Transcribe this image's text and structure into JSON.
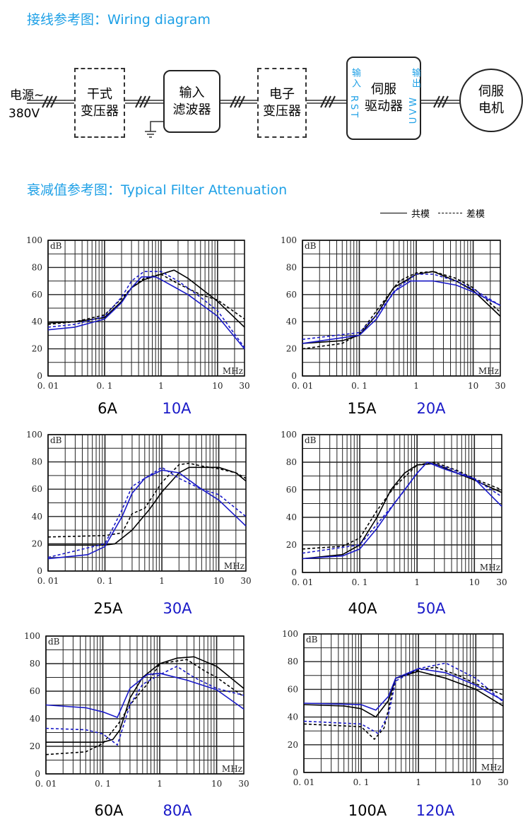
{
  "wiring": {
    "title": "接线参考图：Wiring diagram",
    "power_label": "电源~",
    "voltage_label": "380V",
    "dry_transformer": [
      "干式",
      "变压器"
    ],
    "input_filter": [
      "输入",
      "滤波器"
    ],
    "electronic_transformer": [
      "电子",
      "变压器"
    ],
    "servo_drive": [
      "伺服",
      "驱动器"
    ],
    "drive_input_label": "输入",
    "drive_input_terminals": "RST",
    "drive_output_label": "输出",
    "drive_output_terminals": "UVW",
    "servo_motor": [
      "伺服",
      "电机"
    ]
  },
  "attenuation": {
    "title": "衰减值参考图：Typical Filter Attenuation",
    "legend_common": "共模",
    "legend_diff": "差模"
  },
  "colors": {
    "accent": "#1ea0e6",
    "model_a": "#000000",
    "model_b": "#1a1ac8"
  },
  "chart_data": [
    {
      "type": "line",
      "ylabel": "dB",
      "xlabel": "MHz",
      "xscale": "log",
      "xlim": [
        0.01,
        30
      ],
      "ylim": [
        0,
        100
      ],
      "xticks": [
        "0. 01",
        "0. 1",
        "1",
        "10",
        "30"
      ],
      "yticks": [
        "0",
        "20",
        "40",
        "60",
        "80",
        "100"
      ],
      "labels": [
        "6A",
        "10A"
      ],
      "series": [
        {
          "name": "6A 共模",
          "x": [
            0.01,
            0.03,
            0.1,
            0.2,
            0.3,
            0.5,
            1,
            1.7,
            3,
            10,
            30
          ],
          "y": [
            39,
            40,
            43,
            55,
            65,
            71,
            75,
            78,
            72,
            55,
            36
          ]
        },
        {
          "name": "6A 差模",
          "x": [
            0.01,
            0.03,
            0.1,
            0.2,
            0.3,
            0.5,
            1,
            2,
            5,
            10,
            30
          ],
          "y": [
            38,
            40,
            45,
            57,
            65,
            72,
            75,
            68,
            60,
            56,
            42
          ]
        },
        {
          "name": "10A 共模",
          "x": [
            0.01,
            0.03,
            0.1,
            0.2,
            0.3,
            0.45,
            0.8,
            1,
            3,
            10,
            30
          ],
          "y": [
            34,
            36,
            42,
            54,
            65,
            73,
            73,
            71,
            60,
            44,
            20
          ]
        },
        {
          "name": "10A 差模",
          "x": [
            0.01,
            0.03,
            0.1,
            0.2,
            0.3,
            0.5,
            1,
            2,
            5,
            10,
            30
          ],
          "y": [
            36,
            38,
            44,
            58,
            70,
            77,
            77,
            70,
            58,
            48,
            21
          ]
        }
      ]
    },
    {
      "type": "line",
      "ylabel": "dB",
      "xlabel": "MHz",
      "xscale": "log",
      "xlim": [
        0.01,
        30
      ],
      "ylim": [
        0,
        100
      ],
      "xticks": [
        "0. 01",
        "0. 1",
        "1",
        "10",
        "30"
      ],
      "yticks": [
        "0",
        "20",
        "40",
        "60",
        "80",
        "100"
      ],
      "labels": [
        "15A",
        "20A"
      ],
      "series": [
        {
          "name": "15A 共模",
          "x": [
            0.01,
            0.05,
            0.1,
            0.2,
            0.4,
            1,
            2,
            5,
            10,
            30
          ],
          "y": [
            24,
            26,
            30,
            45,
            65,
            75,
            77,
            70,
            63,
            44
          ]
        },
        {
          "name": "15A 差模",
          "x": [
            0.01,
            0.05,
            0.1,
            0.2,
            0.5,
            1,
            2,
            5,
            10,
            30
          ],
          "y": [
            20,
            24,
            31,
            48,
            70,
            76,
            77,
            72,
            65,
            47
          ]
        },
        {
          "name": "20A 共模",
          "x": [
            0.01,
            0.1,
            0.2,
            0.4,
            0.8,
            2,
            5,
            10,
            30
          ],
          "y": [
            24,
            30,
            42,
            62,
            70,
            70,
            67,
            62,
            52
          ]
        },
        {
          "name": "20A 差模",
          "x": [
            0.01,
            0.1,
            0.2,
            0.5,
            1,
            2,
            5,
            10,
            30
          ],
          "y": [
            27,
            32,
            45,
            66,
            75,
            75,
            70,
            64,
            52
          ]
        }
      ]
    },
    {
      "type": "line",
      "ylabel": "dB",
      "xlabel": "MHz",
      "xscale": "log",
      "xlim": [
        0.01,
        30
      ],
      "ylim": [
        0,
        100
      ],
      "xticks": [
        "0. 01",
        "0. 1",
        "1",
        "10",
        "30"
      ],
      "yticks": [
        "0",
        "20",
        "40",
        "60",
        "80",
        "100"
      ],
      "labels": [
        "25A",
        "30A"
      ],
      "series": [
        {
          "name": "25A 共模",
          "x": [
            0.01,
            0.1,
            0.15,
            0.3,
            0.6,
            1,
            2,
            3,
            10,
            20,
            30
          ],
          "y": [
            19,
            19,
            20,
            30,
            45,
            58,
            72,
            76,
            76,
            72,
            66
          ]
        },
        {
          "name": "25A 差模",
          "x": [
            0.01,
            0.1,
            0.2,
            0.3,
            0.5,
            1,
            2,
            3,
            5,
            10,
            20,
            30
          ],
          "y": [
            25,
            26,
            28,
            42,
            46,
            65,
            78,
            79,
            77,
            75,
            72,
            68
          ]
        },
        {
          "name": "30A 共模",
          "x": [
            0.01,
            0.05,
            0.1,
            0.2,
            0.3,
            0.5,
            1,
            2,
            5,
            10,
            30
          ],
          "y": [
            9,
            12,
            18,
            40,
            57,
            68,
            74,
            72,
            60,
            52,
            33
          ]
        },
        {
          "name": "30A 差模",
          "x": [
            0.01,
            0.1,
            0.2,
            0.3,
            0.6,
            1,
            2,
            5,
            10,
            30
          ],
          "y": [
            10,
            20,
            45,
            62,
            70,
            76,
            68,
            60,
            56,
            40
          ]
        }
      ]
    },
    {
      "type": "line",
      "ylabel": "dB",
      "xlabel": "MHz",
      "xscale": "log",
      "xlim": [
        0.01,
        30
      ],
      "ylim": [
        0,
        100
      ],
      "xticks": [
        "0. 01",
        "0. 1",
        "1",
        "10",
        "30"
      ],
      "yticks": [
        "0",
        "20",
        "40",
        "60",
        "80",
        "100"
      ],
      "labels": [
        "40A",
        "50A"
      ],
      "series": [
        {
          "name": "40A 共模",
          "x": [
            0.01,
            0.05,
            0.1,
            0.2,
            0.35,
            0.6,
            1,
            2,
            5,
            10,
            30
          ],
          "y": [
            10,
            13,
            20,
            40,
            60,
            72,
            78,
            79,
            72,
            67,
            58
          ]
        },
        {
          "name": "40A 差模",
          "x": [
            0.01,
            0.05,
            0.1,
            0.2,
            0.4,
            1,
            2,
            5,
            10,
            30
          ],
          "y": [
            17,
            19,
            25,
            45,
            62,
            78,
            80,
            74,
            68,
            60
          ]
        },
        {
          "name": "50A 共模",
          "x": [
            0.01,
            0.05,
            0.1,
            0.2,
            0.4,
            1,
            1.5,
            3,
            10,
            30
          ],
          "y": [
            10,
            12,
            17,
            32,
            50,
            72,
            80,
            75,
            68,
            48
          ]
        },
        {
          "name": "50A 差模",
          "x": [
            0.01,
            0.1,
            0.2,
            0.5,
            1,
            1.5,
            4,
            10,
            30
          ],
          "y": [
            14,
            20,
            35,
            55,
            72,
            80,
            75,
            68,
            55
          ]
        }
      ]
    },
    {
      "type": "line",
      "ylabel": "dB",
      "xlabel": "MHz",
      "xscale": "log",
      "xlim": [
        0.01,
        30
      ],
      "ylim": [
        0,
        100
      ],
      "xticks": [
        "0. 01",
        "0. 1",
        "1",
        "10",
        "30"
      ],
      "yticks": [
        "0",
        "20",
        "40",
        "60",
        "80",
        "100"
      ],
      "labels": [
        "60A",
        "80A"
      ],
      "series": [
        {
          "name": "60A 共模",
          "x": [
            0.01,
            0.1,
            0.15,
            0.2,
            0.3,
            0.5,
            1,
            2,
            4,
            10,
            30
          ],
          "y": [
            23,
            23,
            25,
            32,
            55,
            70,
            80,
            84,
            85,
            78,
            62
          ]
        },
        {
          "name": "60A 差模",
          "x": [
            0.01,
            0.05,
            0.1,
            0.2,
            0.3,
            0.6,
            1,
            3,
            6,
            10,
            30
          ],
          "y": [
            14,
            16,
            22,
            38,
            50,
            65,
            80,
            83,
            75,
            70,
            56
          ]
        },
        {
          "name": "80A 共模",
          "x": [
            0.01,
            0.05,
            0.1,
            0.18,
            0.3,
            0.6,
            1,
            3,
            10,
            30
          ],
          "y": [
            50,
            48,
            45,
            41,
            62,
            72,
            73,
            68,
            61,
            47
          ]
        },
        {
          "name": "80A 差模",
          "x": [
            0.01,
            0.05,
            0.1,
            0.18,
            0.3,
            0.5,
            1,
            2,
            4,
            10,
            30
          ],
          "y": [
            33,
            32,
            29,
            21,
            50,
            65,
            72,
            78,
            70,
            62,
            57
          ]
        }
      ]
    },
    {
      "type": "line",
      "ylabel": "dB",
      "xlabel": "MHz",
      "xscale": "log",
      "xlim": [
        0.01,
        30
      ],
      "ylim": [
        0,
        100
      ],
      "xticks": [
        "0. 01",
        "0. 1",
        "1",
        "10",
        "30"
      ],
      "yticks": [
        "0",
        "20",
        "40",
        "60",
        "80",
        "100"
      ],
      "labels": [
        "100A",
        "120A"
      ],
      "series": [
        {
          "name": "100A 共模",
          "x": [
            0.01,
            0.05,
            0.1,
            0.18,
            0.3,
            0.4,
            1,
            3,
            10,
            30
          ],
          "y": [
            49,
            48,
            46,
            40,
            52,
            68,
            73,
            68,
            60,
            48
          ]
        },
        {
          "name": "100A 差模",
          "x": [
            0.01,
            0.1,
            0.17,
            0.25,
            0.4,
            1,
            2,
            5,
            10,
            30
          ],
          "y": [
            35,
            33,
            24,
            32,
            68,
            74,
            76,
            70,
            64,
            56
          ]
        },
        {
          "name": "120A 共模",
          "x": [
            0.01,
            0.1,
            0.18,
            0.3,
            0.4,
            1,
            3,
            10,
            30
          ],
          "y": [
            50,
            49,
            45,
            55,
            68,
            75,
            72,
            63,
            52
          ]
        },
        {
          "name": "120A 差模",
          "x": [
            0.01,
            0.1,
            0.2,
            0.3,
            0.4,
            1,
            3,
            10,
            30
          ],
          "y": [
            37,
            35,
            28,
            42,
            66,
            75,
            79,
            68,
            51
          ]
        }
      ]
    }
  ]
}
